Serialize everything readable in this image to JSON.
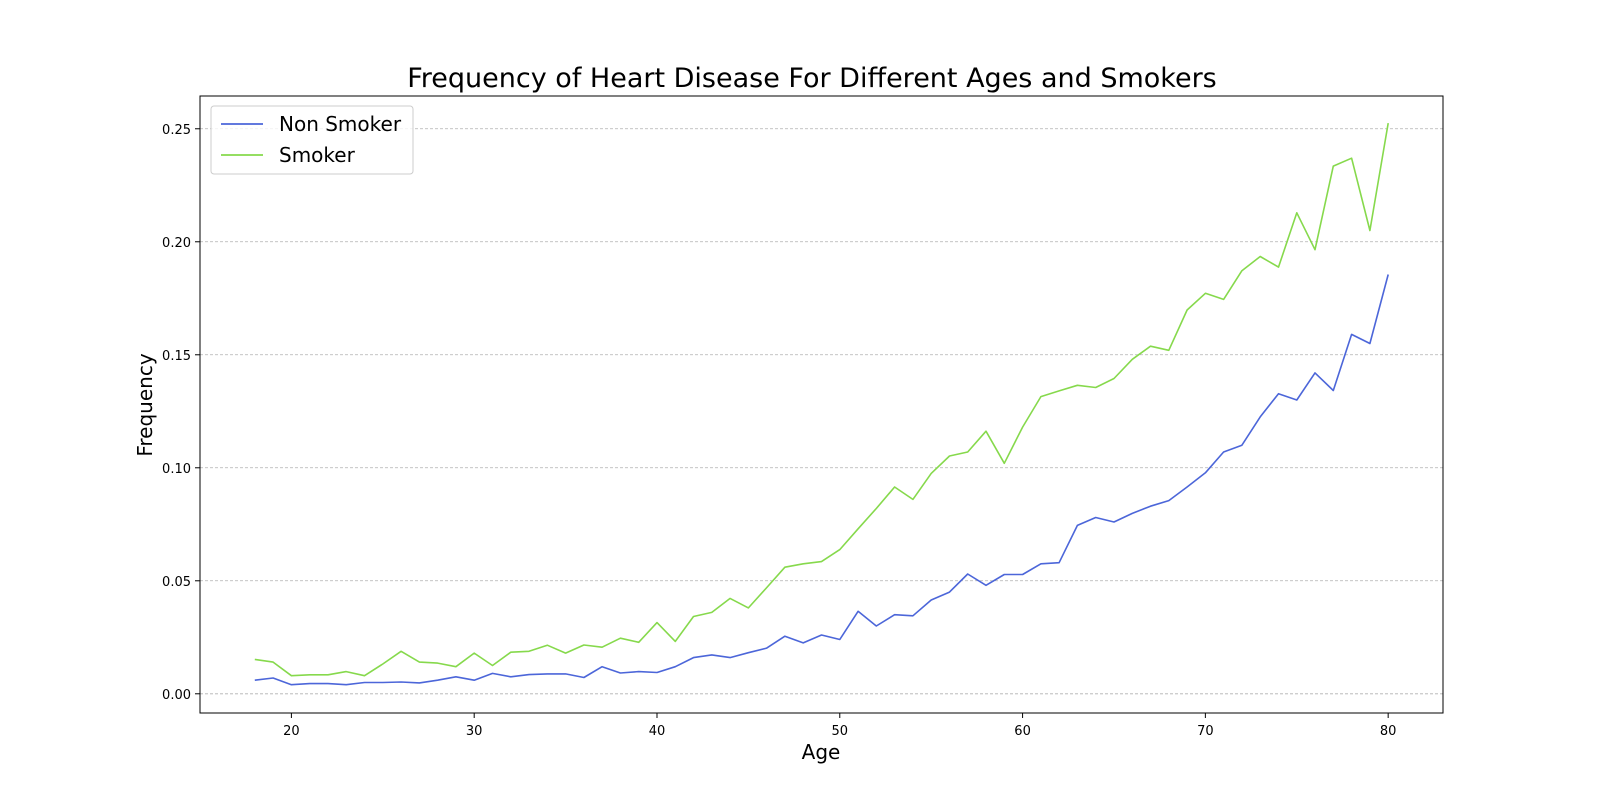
{
  "chart_data": {
    "type": "line",
    "title": "Frequency of Heart Disease For Different Ages and Smokers",
    "xlabel": "Age",
    "ylabel": "Frequency",
    "xlim": [
      15,
      83
    ],
    "ylim": [
      -0.0085,
      0.2645
    ],
    "xticks": [
      20,
      30,
      40,
      50,
      60,
      70,
      80
    ],
    "xtick_labels": [
      "20",
      "30",
      "40",
      "50",
      "60",
      "70",
      "80"
    ],
    "yticks": [
      0.0,
      0.05,
      0.1,
      0.15,
      0.2,
      0.25
    ],
    "ytick_labels": [
      "0.00",
      "0.05",
      "0.10",
      "0.15",
      "0.20",
      "0.25"
    ],
    "grid": "y-dashed",
    "legend_position": "top-left",
    "x": [
      18,
      19,
      20,
      21,
      22,
      23,
      24,
      25,
      26,
      27,
      28,
      29,
      30,
      31,
      32,
      33,
      34,
      35,
      36,
      37,
      38,
      39,
      40,
      41,
      42,
      43,
      44,
      45,
      46,
      47,
      48,
      49,
      50,
      51,
      52,
      53,
      54,
      55,
      56,
      57,
      58,
      59,
      60,
      61,
      62,
      63,
      64,
      65,
      66,
      67,
      68,
      69,
      70,
      71,
      72,
      73,
      74,
      75,
      76,
      77,
      78,
      79,
      80
    ],
    "series": [
      {
        "name": "Non Smoker",
        "color": "#4c66d9",
        "values": [
          0.006,
          0.007,
          0.004,
          0.0045,
          0.0045,
          0.004,
          0.005,
          0.005,
          0.0052,
          0.0048,
          0.006,
          0.0075,
          0.006,
          0.009,
          0.0075,
          0.0085,
          0.0088,
          0.0088,
          0.0072,
          0.012,
          0.0092,
          0.0098,
          0.0094,
          0.012,
          0.016,
          0.0172,
          0.016,
          0.0182,
          0.0202,
          0.0255,
          0.0225,
          0.026,
          0.024,
          0.0365,
          0.03,
          0.035,
          0.0345,
          0.0415,
          0.045,
          0.053,
          0.048,
          0.0528,
          0.0528,
          0.0575,
          0.058,
          0.0745,
          0.078,
          0.076,
          0.0798,
          0.083,
          0.0855,
          0.0915,
          0.0978,
          0.107,
          0.11,
          0.1225,
          0.1328,
          0.13,
          0.142,
          0.1342,
          0.159,
          0.155,
          0.1855
        ]
      },
      {
        "name": "Smoker",
        "color": "#86d94c",
        "values": [
          0.0152,
          0.014,
          0.008,
          0.0084,
          0.0084,
          0.0098,
          0.008,
          0.0132,
          0.0188,
          0.014,
          0.0136,
          0.012,
          0.018,
          0.0125,
          0.0184,
          0.0188,
          0.0215,
          0.018,
          0.0216,
          0.0206,
          0.0246,
          0.0228,
          0.0315,
          0.0232,
          0.0342,
          0.036,
          0.0422,
          0.038,
          0.047,
          0.056,
          0.0575,
          0.0585,
          0.0638,
          0.073,
          0.082,
          0.0915,
          0.086,
          0.0975,
          0.1052,
          0.107,
          0.1162,
          0.102,
          0.118,
          0.1315,
          0.134,
          0.1365,
          0.1355,
          0.1395,
          0.148,
          0.1538,
          0.152,
          0.1698,
          0.1772,
          0.1745,
          0.1872,
          0.1935,
          0.1888,
          0.2128,
          0.1965,
          0.2335,
          0.237,
          0.205,
          0.2525
        ]
      }
    ]
  }
}
